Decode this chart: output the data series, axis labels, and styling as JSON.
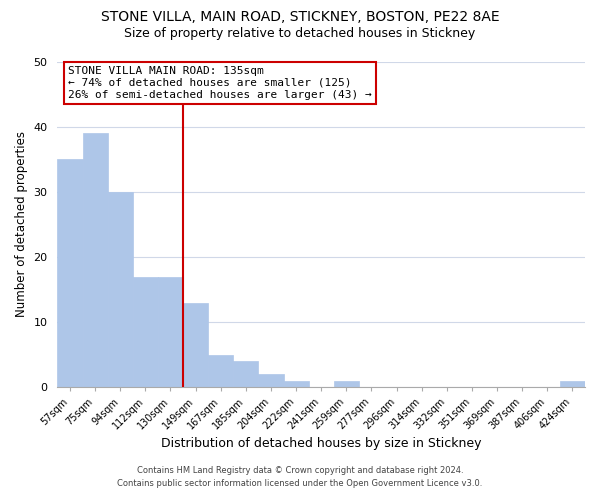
{
  "title": "STONE VILLA, MAIN ROAD, STICKNEY, BOSTON, PE22 8AE",
  "subtitle": "Size of property relative to detached houses in Stickney",
  "xlabel": "Distribution of detached houses by size in Stickney",
  "ylabel": "Number of detached properties",
  "bar_labels": [
    "57sqm",
    "75sqm",
    "94sqm",
    "112sqm",
    "130sqm",
    "149sqm",
    "167sqm",
    "185sqm",
    "204sqm",
    "222sqm",
    "241sqm",
    "259sqm",
    "277sqm",
    "296sqm",
    "314sqm",
    "332sqm",
    "351sqm",
    "369sqm",
    "387sqm",
    "406sqm",
    "424sqm"
  ],
  "bar_heights": [
    35,
    39,
    30,
    17,
    17,
    13,
    5,
    4,
    2,
    1,
    0,
    1,
    0,
    0,
    0,
    0,
    0,
    0,
    0,
    0,
    1
  ],
  "bar_color": "#aec6e8",
  "bar_edge_color": "#aec6e8",
  "vline_x": 4.5,
  "vline_color": "#cc0000",
  "ylim": [
    0,
    50
  ],
  "annotation_title": "STONE VILLA MAIN ROAD: 135sqm",
  "annotation_line1": "← 74% of detached houses are smaller (125)",
  "annotation_line2": "26% of semi-detached houses are larger (43) →",
  "annotation_box_color": "#ffffff",
  "annotation_box_edge": "#cc0000",
  "footnote1": "Contains HM Land Registry data © Crown copyright and database right 2024.",
  "footnote2": "Contains public sector information licensed under the Open Government Licence v3.0.",
  "background_color": "#ffffff",
  "grid_color": "#d0d8e8",
  "title_fontsize": 10,
  "subtitle_fontsize": 9
}
